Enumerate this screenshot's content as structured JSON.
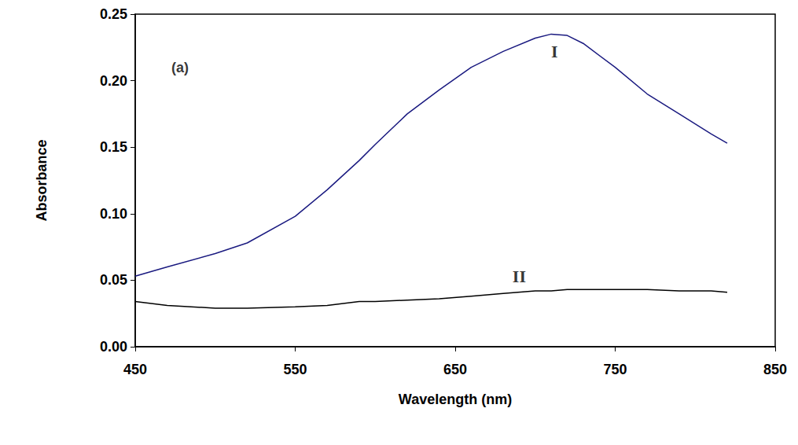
{
  "chart_data": {
    "type": "line",
    "x_label": "Wavelength (nm)",
    "y_label": "Absorbance",
    "x": [
      450,
      470,
      500,
      520,
      550,
      570,
      590,
      600,
      620,
      640,
      660,
      680,
      700,
      710,
      720,
      730,
      750,
      770,
      790,
      810,
      820
    ],
    "series": [
      {
        "name": "I",
        "color": "#1a1a80",
        "name_position": [
          712,
          0.222
        ],
        "values": [
          0.053,
          0.06,
          0.07,
          0.078,
          0.098,
          0.118,
          0.14,
          0.152,
          0.175,
          0.193,
          0.21,
          0.222,
          0.232,
          0.235,
          0.234,
          0.228,
          0.21,
          0.19,
          0.175,
          0.16,
          0.153
        ]
      },
      {
        "name": "II",
        "color": "#000000",
        "name_position": [
          690,
          0.053
        ],
        "values": [
          0.034,
          0.031,
          0.029,
          0.029,
          0.03,
          0.031,
          0.034,
          0.034,
          0.035,
          0.036,
          0.038,
          0.04,
          0.042,
          0.042,
          0.043,
          0.043,
          0.043,
          0.043,
          0.042,
          0.042,
          0.041
        ]
      }
    ],
    "annotations": [
      {
        "text": "(a)",
        "x": 478,
        "y": 0.21
      }
    ],
    "xlim": [
      450,
      850
    ],
    "xticks": [
      450,
      550,
      650,
      750,
      850
    ],
    "ylim": [
      0,
      0.25
    ],
    "yticks": [
      {
        "value": 0,
        "label": "0.00"
      },
      0.05,
      {
        "value": 0.1,
        "label": "0.10"
      },
      0.15,
      {
        "value": 0.2,
        "label": "0.20"
      },
      0.25
    ],
    "grid": false
  }
}
